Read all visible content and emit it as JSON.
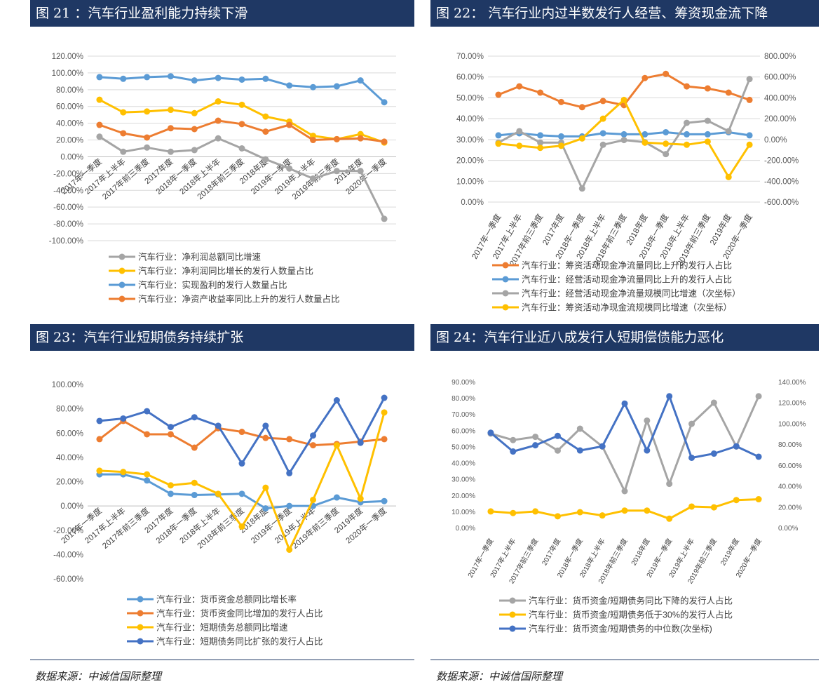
{
  "source_note": "数据来源：中诚信国际整理",
  "colors": {
    "gray": "#A5A5A5",
    "yellow": "#FFC000",
    "lightblue": "#5B9BD5",
    "orange": "#ED7D31",
    "darkblue": "#4472C4",
    "header": "#1F3864"
  },
  "chart_data": [
    {
      "id": "fig21",
      "type": "line",
      "title": "图 21 ：汽车行业盈利能力持续下滑",
      "categories": [
        "2017年一季度",
        "2017年上半年",
        "2017年前三季度",
        "2017年度",
        "2018年一季度",
        "2018年上半年",
        "2018年前三季度",
        "2018年度",
        "2019年一季度",
        "2019年上半年",
        "2019年前三季度",
        "2019年度",
        "2020年一季度"
      ],
      "y_ticks": [
        "120.00%",
        "100.00%",
        "80.00%",
        "60.00%",
        "40.00%",
        "20.00%",
        "0.00%",
        "-20.00%",
        "-40.00%",
        "-60.00%",
        "-80.00%",
        "-100.00%"
      ],
      "ylim": [
        -100,
        120
      ],
      "grid": true,
      "legend_position": "bottom",
      "series": [
        {
          "name": "汽车行业：净利润总额同比增速",
          "color": "gray",
          "axis": "left",
          "values": [
            24,
            6,
            11,
            6,
            8,
            22,
            10,
            -3,
            -14,
            -26,
            -17,
            -17,
            -74
          ]
        },
        {
          "name": "汽车行业：净利润同比增长的发行人数量占比",
          "color": "yellow",
          "axis": "left",
          "values": [
            68,
            53,
            54,
            56,
            52,
            66,
            62,
            48,
            42,
            25,
            21,
            27,
            17
          ]
        },
        {
          "name": "汽车行业：实现盈利的发行人数量占比",
          "color": "lightblue",
          "axis": "left",
          "values": [
            95,
            93,
            95,
            96,
            91,
            94,
            92,
            93,
            85,
            83,
            84,
            91,
            65
          ]
        },
        {
          "name": "汽车行业：净资产收益率同比上升的发行人数量占比",
          "color": "orange",
          "axis": "left",
          "values": [
            38,
            28,
            23,
            34,
            33,
            43,
            39,
            30,
            38,
            20,
            21,
            22,
            18
          ]
        }
      ]
    },
    {
      "id": "fig22",
      "type": "line",
      "title": "图 22： 汽车行业内过半数发行人经营、筹资现金流下降",
      "categories": [
        "2017年一季度",
        "2017年上半年",
        "2017年前三季度",
        "2017年度",
        "2018年一季度",
        "2018年上半年",
        "2018年前三季度",
        "2018年度",
        "2019年一季度",
        "2019年上半年",
        "2019年前三季度",
        "2019年度",
        "2020年一季度"
      ],
      "y_ticks": [
        "70.00%",
        "60.00%",
        "50.00%",
        "40.00%",
        "30.00%",
        "20.00%",
        "10.00%",
        "0.00%"
      ],
      "y2_ticks": [
        "800.00%",
        "600.00%",
        "400.00%",
        "200.00%",
        "0.00%",
        "-200.00%",
        "-400.00%",
        "-600.00%"
      ],
      "ylim": [
        0,
        70
      ],
      "y2lim": [
        -600,
        800
      ],
      "grid": true,
      "legend_position": "bottom",
      "series": [
        {
          "name": "汽车行业：筹资活动现金净流量同比上升的发行人占比",
          "color": "orange",
          "axis": "left",
          "values": [
            51.5,
            55.5,
            52.5,
            48,
            45.5,
            48.5,
            46.5,
            59.5,
            61.5,
            55.5,
            54.5,
            52.5,
            49
          ]
        },
        {
          "name": "汽车行业：经营活动现金净流量同比上升的发行人占比",
          "color": "lightblue",
          "axis": "left",
          "values": [
            32,
            33,
            32,
            31.5,
            31.5,
            33,
            32.5,
            32.5,
            33.5,
            32.5,
            32.5,
            33.5,
            32
          ]
        },
        {
          "name": "汽车行业：经营活动现金净流量规模同比增速（次坐标）",
          "color": "gray",
          "axis": "right",
          "values": [
            -30,
            80,
            -30,
            -30,
            -470,
            -50,
            -5,
            -25,
            -140,
            160,
            180,
            80,
            580
          ]
        },
        {
          "name": "汽车行业：筹资活动净现金流规模同比增速（次坐标）",
          "color": "yellow",
          "axis": "right",
          "values": [
            -40,
            -60,
            -80,
            -60,
            10,
            200,
            380,
            -30,
            -40,
            -50,
            -20,
            -360,
            -50
          ]
        }
      ]
    },
    {
      "id": "fig23",
      "type": "line",
      "title": "图 23：汽车行业短期债务持续扩张",
      "categories": [
        "2017年一季度",
        "2017年上半年",
        "2017年前三季度",
        "2017年度",
        "2018年一季度",
        "2018年上半年",
        "2018年前三季度",
        "2018年度",
        "2019年一季度",
        "2019年上半年",
        "2019年前三季度",
        "2019年度",
        "2020年一季度"
      ],
      "y_ticks": [
        "100.00%",
        "80.00%",
        "60.00%",
        "40.00%",
        "20.00%",
        "0.00%",
        "-20.00%",
        "-40.00%",
        "-60.00%"
      ],
      "ylim": [
        -60,
        100
      ],
      "grid": false,
      "legend_position": "bottom",
      "series": [
        {
          "name": "汽车行业：货币资金总额同比增长率",
          "color": "lightblue",
          "axis": "left",
          "values": [
            26,
            26,
            21,
            10,
            9,
            9.5,
            10,
            -2,
            0,
            0,
            7,
            3,
            4
          ]
        },
        {
          "name": "汽车行业：货币资金同比增加的发行人占比",
          "color": "orange",
          "axis": "left",
          "values": [
            55,
            70,
            59,
            59,
            48,
            64,
            61,
            56,
            55,
            50,
            51,
            53,
            55
          ]
        },
        {
          "name": "汽车行业：短期债务总额同比增速",
          "color": "yellow",
          "axis": "left",
          "values": [
            29,
            28,
            26,
            17,
            19,
            10,
            -17,
            15,
            -36,
            5,
            50,
            6,
            77
          ]
        },
        {
          "name": "汽车行业：短期债务同比扩张的发行人占比",
          "color": "darkblue",
          "axis": "left",
          "values": [
            70,
            72,
            78,
            65,
            73,
            66,
            35,
            66,
            27,
            58,
            87,
            52,
            89
          ]
        }
      ]
    },
    {
      "id": "fig24",
      "type": "line",
      "title": "图 24：汽车行业近八成发行人短期偿债能力恶化",
      "categories": [
        "2017年一季度",
        "2017年上半年",
        "2017年前三季度",
        "2017年度",
        "2018年一季度",
        "2018年上半年",
        "2018年前三季度",
        "2018年度",
        "2019年一季度",
        "2019年上半年",
        "2019年前三季度",
        "2019年度",
        "2020年一季度"
      ],
      "y_ticks": [
        "90.00%",
        "80.00%",
        "70.00%",
        "60.00%",
        "50.00%",
        "40.00%",
        "30.00%",
        "20.00%",
        "10.00%",
        "0.00%"
      ],
      "y2_ticks": [
        "140.00%",
        "120.00%",
        "100.00%",
        "80.00%",
        "60.00%",
        "40.00%",
        "20.00%",
        "0.00%"
      ],
      "ylim": [
        0,
        90
      ],
      "y2lim": [
        0,
        140
      ],
      "grid": false,
      "legend_position": "bottom",
      "series": [
        {
          "name": "汽车行业：货币资金/短期债务同比下降的发行人占比",
          "color": "gray",
          "axis": "left",
          "values": [
            58,
            54,
            56,
            47.5,
            61,
            50,
            22.5,
            66,
            27,
            64,
            77,
            50,
            81
          ]
        },
        {
          "name": "汽车行业：货币资金/短期债务低于30%的发行人占比",
          "color": "yellow",
          "axis": "left",
          "values": [
            10,
            9,
            10,
            7,
            9.5,
            7.5,
            10.5,
            10.5,
            5.5,
            13,
            12.5,
            17,
            17.5
          ]
        },
        {
          "name": "汽车行业：货币资金/短期债务的中位数(次坐标)",
          "color": "darkblue",
          "axis": "right",
          "values": [
            91,
            73,
            79,
            88,
            74,
            78,
            119,
            74,
            126,
            67,
            71,
            78,
            68
          ]
        }
      ]
    }
  ]
}
